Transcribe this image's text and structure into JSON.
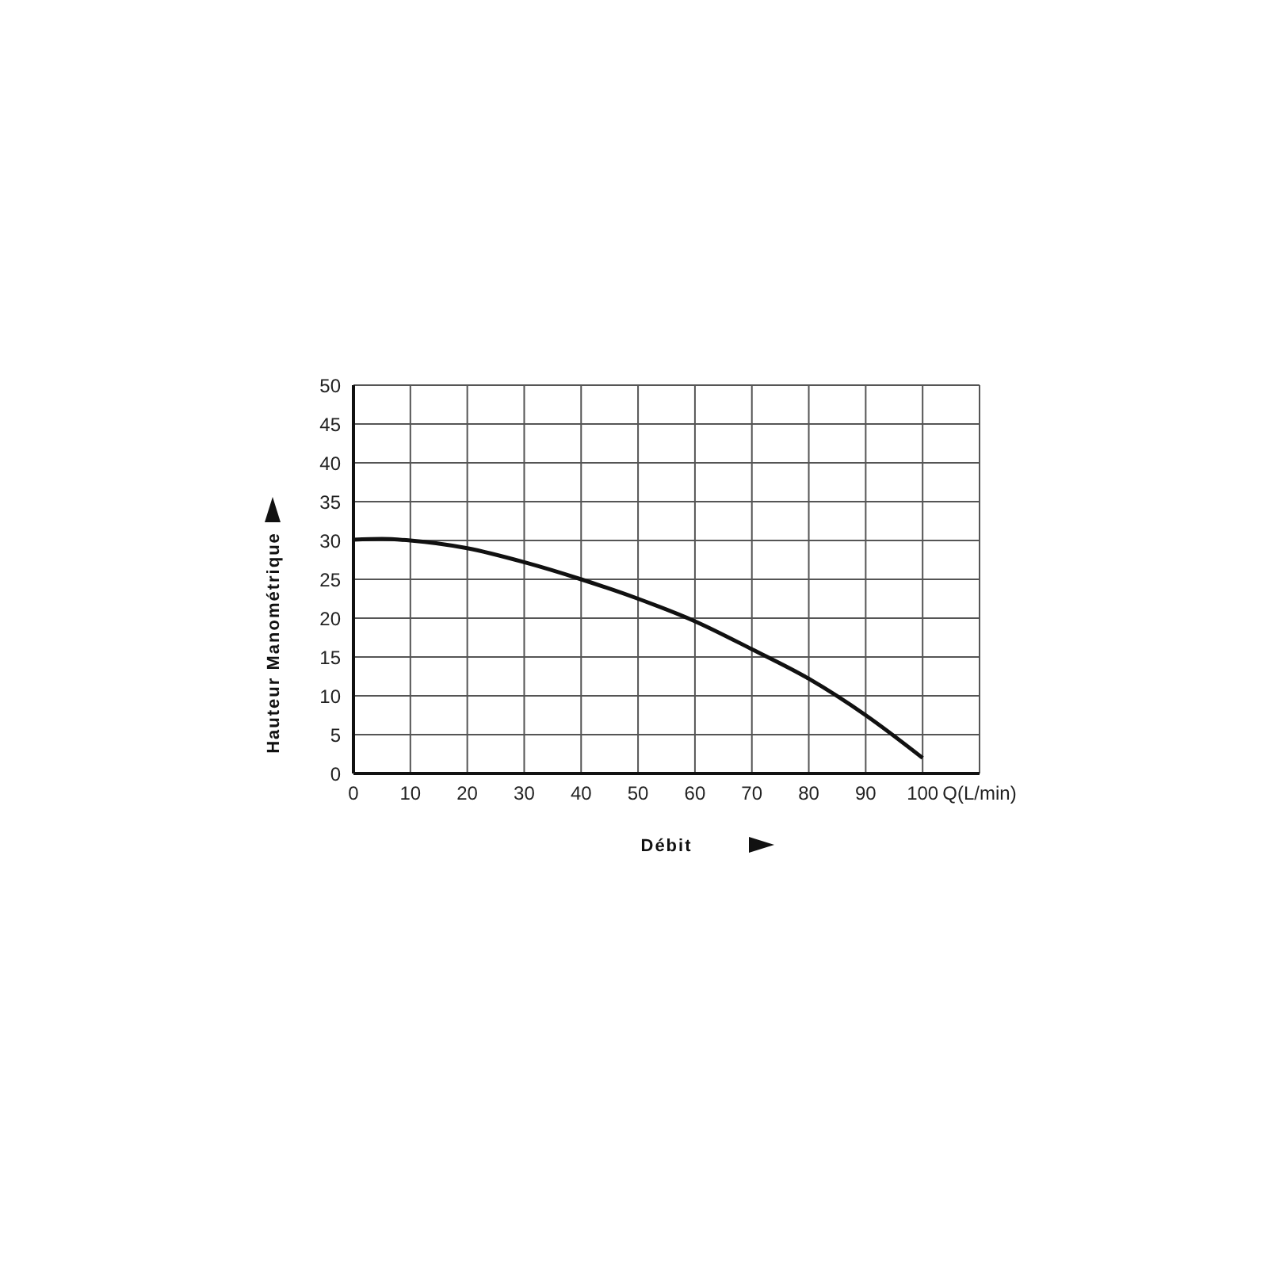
{
  "chart_data": {
    "type": "line",
    "xlabel": "Débit",
    "ylabel": "Hauteur Manométrique",
    "x": [
      0,
      5,
      10,
      20,
      30,
      40,
      50,
      60,
      70,
      80,
      90,
      100
    ],
    "series": [
      {
        "color": "#111111",
        "values": [
          30.1,
          30.2,
          30,
          29,
          27.2,
          25,
          22.5,
          19.6,
          16,
          12.2,
          7.5,
          2
        ]
      }
    ],
    "xlim": [
      0,
      110
    ],
    "xticks": [
      0,
      10,
      20,
      30,
      40,
      50,
      60,
      70,
      80,
      90,
      100,
      {
        "value": 110,
        "label": "Q(L/min)"
      }
    ],
    "ylim": [
      0,
      50
    ],
    "yticks": [
      0,
      5,
      10,
      15,
      20,
      25,
      30,
      35,
      40,
      45,
      50
    ],
    "grid": true,
    "marker": "none",
    "line_style": "solid",
    "legend": false
  }
}
